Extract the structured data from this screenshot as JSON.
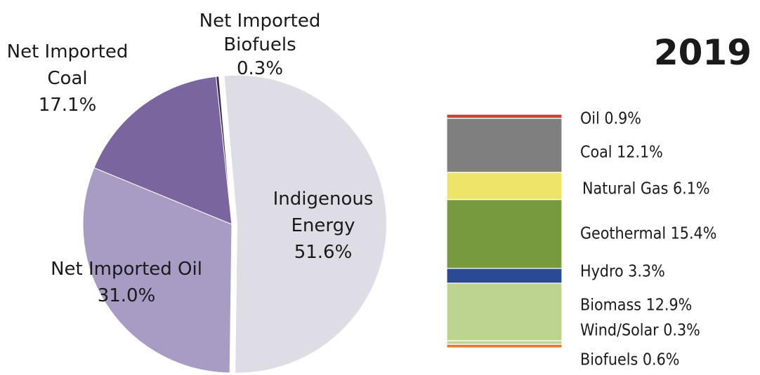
{
  "chart_data": [
    {
      "type": "pie",
      "title": "",
      "slices": [
        {
          "label_lines": [
            "Indigenous",
            "Energy",
            "51.6%"
          ],
          "value": 51.6,
          "color": "#dedde6",
          "exploded": true
        },
        {
          "label_lines": [
            "Net Imported Oil",
            "31.0%"
          ],
          "value": 31.0,
          "color": "#a89cc5",
          "exploded": false
        },
        {
          "label_lines": [
            "Net Imported",
            "Coal",
            "17.1%"
          ],
          "value": 17.1,
          "color": "#7a659f",
          "exploded": false
        },
        {
          "label_lines": [
            "Net Imported",
            "Biofuels",
            "0.3%"
          ],
          "value": 0.3,
          "color": "#3b2d52",
          "exploded": false
        }
      ]
    },
    {
      "type": "bar",
      "stacked": true,
      "title": "2019",
      "segments": [
        {
          "label": "Oil 0.9%",
          "value": 0.9,
          "color": "#c9423a"
        },
        {
          "label": "Coal 12.1%",
          "value": 12.1,
          "color": "#7f7f7f"
        },
        {
          "label": "Natural Gas 6.1%",
          "value": 6.1,
          "color": "#efe46a"
        },
        {
          "label": "Geothermal 15.4%",
          "value": 15.4,
          "color": "#789a3e"
        },
        {
          "label": "Hydro 3.3%",
          "value": 3.3,
          "color": "#2b4a93"
        },
        {
          "label": "Biomass 12.9%",
          "value": 12.9,
          "color": "#bcd48f"
        },
        {
          "label": "Wind/Solar 0.3%",
          "value": 0.3,
          "color": "#bcd48f"
        },
        {
          "label": "Biofuels 0.6%",
          "value": 0.6,
          "color": "#e67a33"
        }
      ]
    }
  ]
}
